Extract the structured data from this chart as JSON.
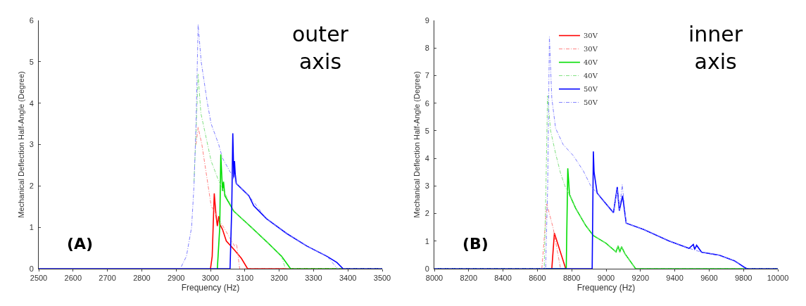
{
  "chart_data": [
    {
      "type": "line",
      "xlabel": "Frequency (Hz)",
      "ylabel": "Mechanical Deflection Half-Angle (Degree)",
      "xlim": [
        2500,
        3500
      ],
      "xticks": [
        2500,
        2600,
        2700,
        2800,
        2900,
        3000,
        3100,
        3200,
        3300,
        3400,
        3500
      ],
      "ylim": [
        0,
        6
      ],
      "yticks": [
        0,
        1,
        2,
        3,
        4,
        5,
        6
      ],
      "grid": false,
      "legend": false,
      "annotations": [
        "outer\naxis",
        "(A)"
      ],
      "series": [
        {
          "color": "#ff0000",
          "line_style": "solid",
          "x": [
            3000,
            3005,
            3011,
            3016,
            3020,
            3024,
            3028,
            3035,
            3046,
            3070,
            3090,
            3108,
            3500
          ],
          "values": [
            0,
            0.3,
            1.82,
            1.3,
            1.03,
            1.27,
            1.06,
            0.95,
            0.67,
            0.45,
            0.25,
            0,
            0
          ]
        },
        {
          "color": "#ff8080",
          "line_style": "dashed",
          "x": [
            2958,
            2964,
            2975,
            3002,
            3010,
            3070,
            3076,
            3085,
            3500
          ],
          "values": [
            3.0,
            3.42,
            3.0,
            1.52,
            1.4,
            0.55,
            0.6,
            0,
            0
          ]
        },
        {
          "color": "#00dd00",
          "line_style": "solid",
          "x": [
            3020,
            3027,
            3030,
            3035,
            3038,
            3042,
            3068,
            3119,
            3170,
            3207,
            3233,
            3500
          ],
          "values": [
            0,
            1.0,
            2.76,
            1.88,
            2.1,
            1.76,
            1.39,
            1.0,
            0.6,
            0.3,
            0,
            0
          ]
        },
        {
          "color": "#80e080",
          "line_style": "dashed",
          "x": [
            2952,
            2958,
            2964,
            2972,
            3002,
            3024,
            3068,
            3119,
            3170,
            3207,
            3218,
            3500
          ],
          "values": [
            2.1,
            3.3,
            4.7,
            3.76,
            2.6,
            2.12,
            1.39,
            1.0,
            0.6,
            0.3,
            0,
            0
          ]
        },
        {
          "color": "#0000ff",
          "line_style": "solid",
          "x": [
            2500,
            3057,
            3062,
            3065,
            3068,
            3070,
            3072,
            3075,
            3112,
            3126,
            3163,
            3222,
            3280,
            3339,
            3368,
            3386,
            3500
          ],
          "values": [
            0,
            0,
            1.5,
            3.27,
            2.2,
            2.6,
            2.3,
            2.06,
            1.76,
            1.52,
            1.21,
            0.85,
            0.55,
            0.3,
            0.15,
            0,
            0
          ]
        },
        {
          "color": "#8080ff",
          "line_style": "dashed",
          "x": [
            2915,
            2930,
            2945,
            2952,
            2958,
            2964,
            2973,
            2991,
            3002,
            3024,
            3035,
            3060,
            3075,
            3112,
            3163,
            3222,
            3280,
            3339,
            3370,
            3500
          ],
          "values": [
            0.05,
            0.3,
            1.0,
            2.0,
            3.5,
            5.9,
            5.0,
            4.0,
            3.5,
            3.0,
            2.67,
            2.3,
            2.06,
            1.76,
            1.21,
            0.85,
            0.55,
            0.3,
            0,
            0
          ]
        }
      ]
    },
    {
      "type": "line",
      "xlabel": "Frequency (Hz)",
      "ylabel": "Mechanical Deflection Half-Angle (Degree)",
      "xlim": [
        8000,
        10000
      ],
      "xticks": [
        8000,
        8200,
        8400,
        8600,
        8800,
        9000,
        9200,
        9400,
        9600,
        9800,
        10000
      ],
      "ylim": [
        0,
        9
      ],
      "yticks": [
        0,
        1,
        2,
        3,
        4,
        5,
        6,
        7,
        8,
        9
      ],
      "grid": false,
      "legend": "top",
      "annotations": [
        "inner\naxis",
        "(B)"
      ],
      "series": [
        {
          "name": "30V",
          "color": "#ff0000",
          "line_style": "solid",
          "x": [
            8684,
            8699,
            8765
          ],
          "values": [
            0,
            1.29,
            0
          ]
        },
        {
          "name": "30V",
          "color": "#ff8080",
          "line_style": "dashed",
          "x": [
            8626,
            8645,
            8655,
            8692,
            8735
          ],
          "values": [
            0,
            1.5,
            2.35,
            1.47,
            0
          ]
        },
        {
          "name": "40V",
          "color": "#00dd00",
          "line_style": "solid",
          "x": [
            8000,
            8768,
            8777,
            8787,
            8823,
            8882,
            8926,
            9000,
            9058,
            9070,
            9080,
            9090,
            9109,
            9172,
            10000
          ],
          "values": [
            0,
            0,
            3.64,
            2.69,
            2.19,
            1.56,
            1.2,
            0.92,
            0.61,
            0.83,
            0.6,
            0.8,
            0.55,
            0,
            0
          ]
        },
        {
          "name": "40V",
          "color": "#80e080",
          "line_style": "dashed",
          "x": [
            8000,
            8640,
            8650,
            8659,
            8677,
            8706,
            8735,
            8765,
            8787,
            8823,
            8882,
            8926,
            9000,
            9058,
            9070,
            9080,
            9090,
            9109,
            9172,
            10000
          ],
          "values": [
            0,
            0,
            3.0,
            6.27,
            5.0,
            4.18,
            3.46,
            2.92,
            2.69,
            2.19,
            1.56,
            1.2,
            0.92,
            0.61,
            0.83,
            0.6,
            0.8,
            0.55,
            0,
            0
          ]
        },
        {
          "name": "50V",
          "color": "#0000ff",
          "line_style": "solid",
          "x": [
            8000,
            8919,
            8926,
            8930,
            8948,
            8985,
            9043,
            9065,
            9077,
            9096,
            9117,
            9219,
            9366,
            9483,
            9508,
            9516,
            9527,
            9556,
            9659,
            9747,
            9805,
            9820,
            10000
          ],
          "values": [
            0,
            0,
            4.25,
            3.5,
            2.74,
            2.46,
            2.03,
            2.96,
            2.1,
            2.64,
            1.65,
            1.42,
            1.01,
            0.74,
            0.88,
            0.7,
            0.85,
            0.6,
            0.49,
            0.29,
            0.05,
            0,
            0
          ]
        },
        {
          "name": "50V",
          "color": "#8080ff",
          "line_style": "dashed",
          "x": [
            8000,
            8648,
            8660,
            8670,
            8684,
            8706,
            8750,
            8809,
            8867,
            8911,
            8948,
            8985,
            9043,
            9065,
            9077,
            9094,
            9117,
            9219,
            9366,
            9483,
            9556,
            9659,
            9747,
            9810,
            10000
          ],
          "values": [
            0,
            0,
            3.0,
            8.4,
            6.18,
            5.09,
            4.5,
            4.1,
            3.55,
            3.0,
            2.74,
            2.46,
            2.03,
            2.9,
            2.1,
            3.05,
            1.65,
            1.42,
            1.01,
            0.74,
            0.6,
            0.49,
            0.29,
            0,
            0
          ]
        }
      ]
    }
  ]
}
